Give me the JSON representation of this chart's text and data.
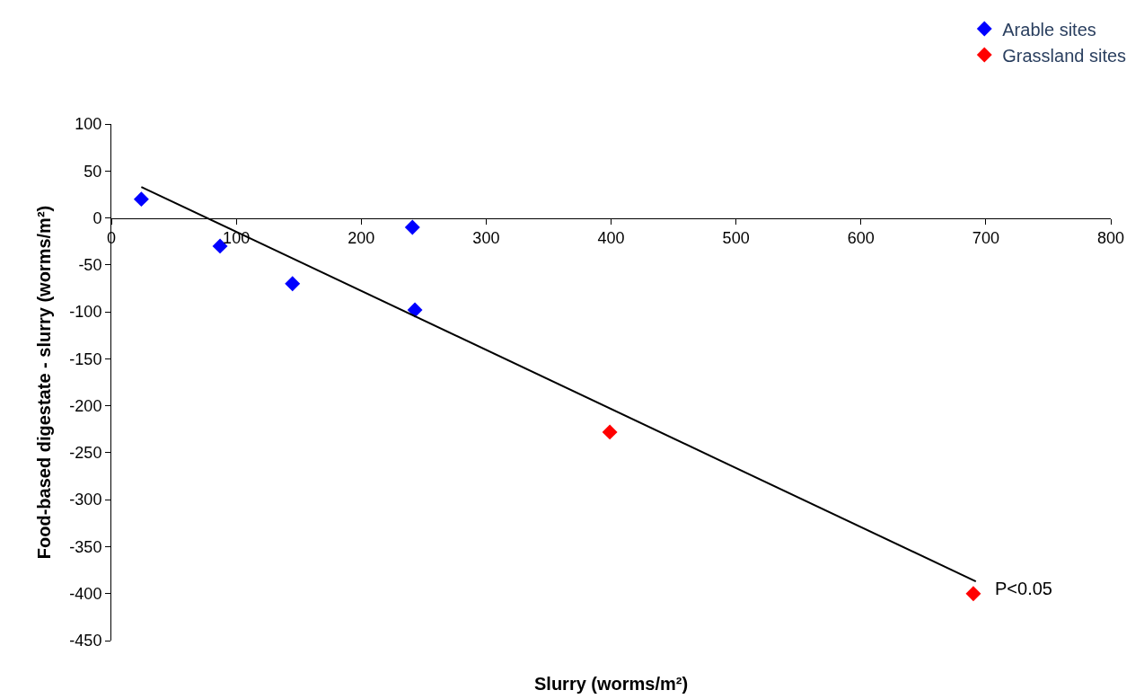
{
  "chart_data": {
    "type": "scatter",
    "xlabel": "Slurry (worms/m²)",
    "ylabel": "Food-based digestate - slurry (worms/m²)",
    "xlim": [
      0,
      800
    ],
    "xticks": [
      0,
      100,
      200,
      300,
      400,
      500,
      600,
      700,
      800
    ],
    "ylim": [
      -450,
      100
    ],
    "yticks": [
      -450,
      -400,
      -350,
      -300,
      -250,
      -200,
      -150,
      -100,
      -50,
      0,
      50,
      100
    ],
    "legend": "top right",
    "marker": "diamond",
    "series": [
      {
        "name": "Arable sites",
        "color": "#0000ff",
        "x": [
          24,
          87,
          145,
          241,
          243
        ],
        "values": [
          20,
          -30,
          -70,
          -10,
          -98
        ]
      },
      {
        "name": "Grassland sites",
        "color": "#ff0000",
        "x": [
          399,
          690
        ],
        "values": [
          -228,
          -400
        ]
      },
      {
        "type": "line",
        "color": "#000000",
        "x": [
          24,
          692
        ],
        "values": [
          33,
          -387
        ],
        "line_style": "solid",
        "marker": "none"
      }
    ],
    "annotations": [
      {
        "text": "P<0.05",
        "x": 690,
        "y": -400
      }
    ]
  }
}
